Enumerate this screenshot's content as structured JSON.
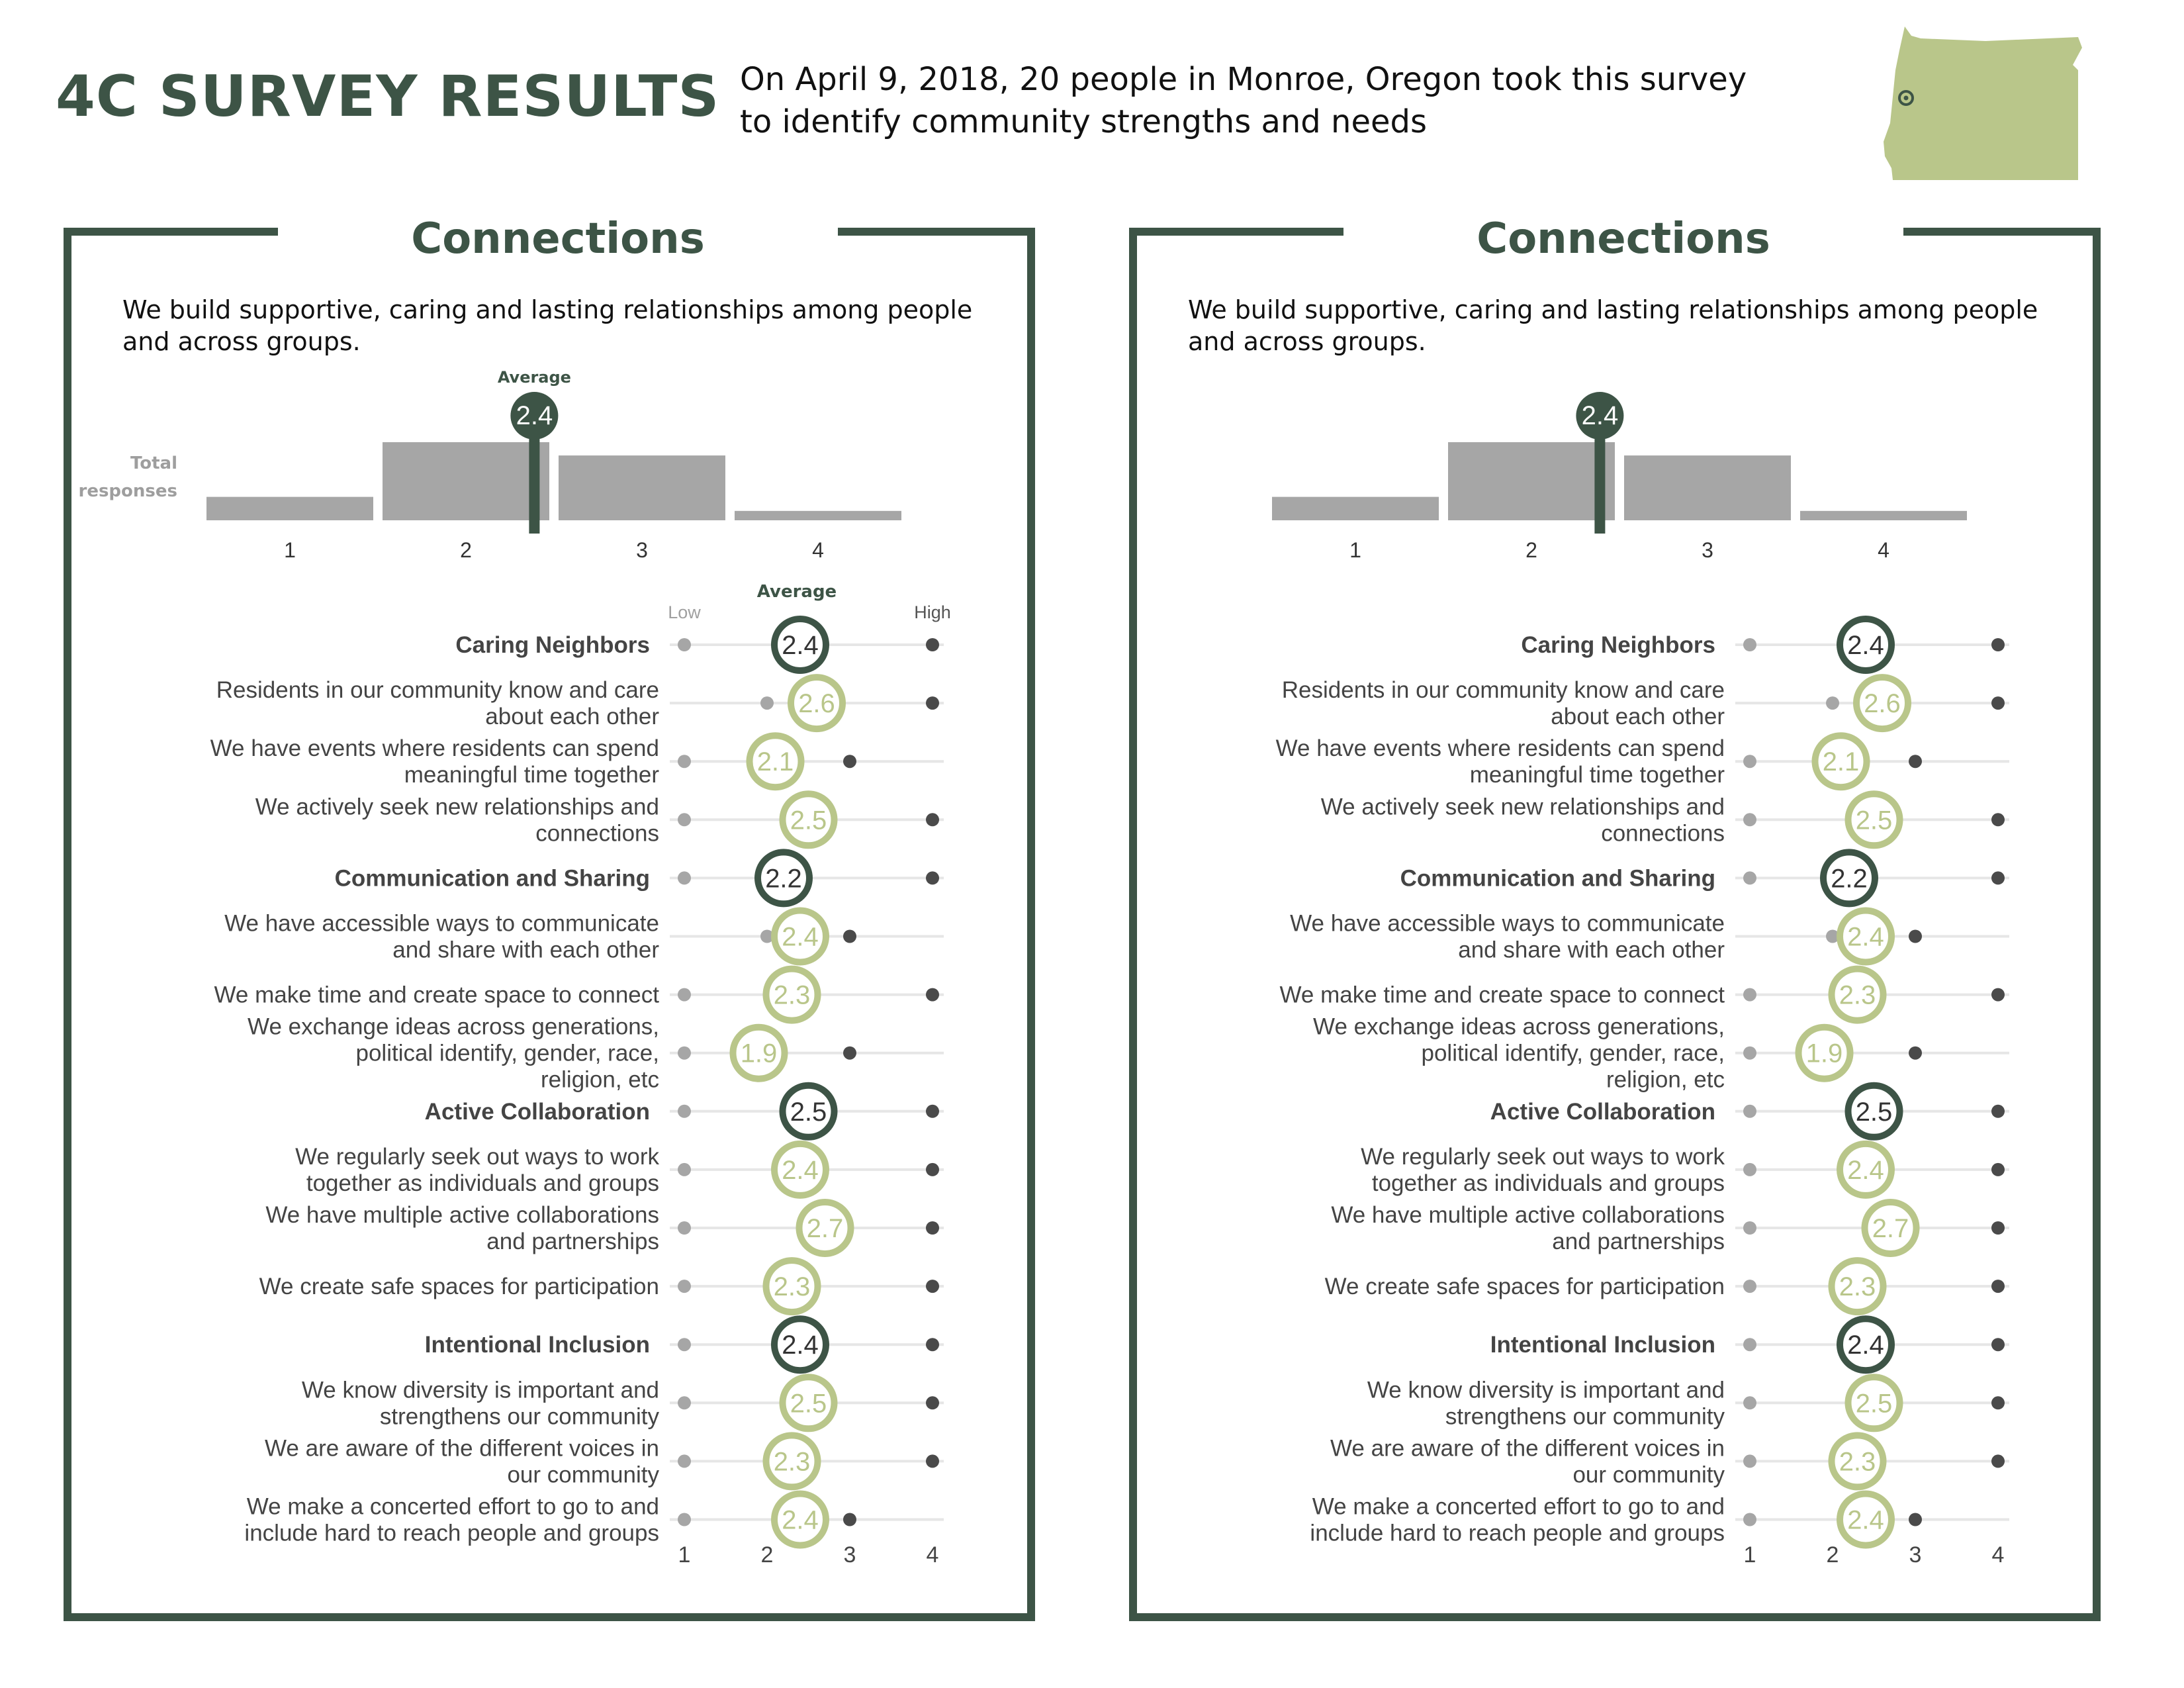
{
  "header": {
    "title": "4C SURVEY RESULTS",
    "intro_line1": "On April 9, 2018, 20 people in Monroe, Oregon took this survey",
    "intro_line2": "to identify community strengths and needs"
  },
  "colors": {
    "dark_green": "#3d5446",
    "light_green": "#b9c68a",
    "bar_gray": "#a6a6a6",
    "low_dot": "#a6a6a6",
    "high_dot": "#4a4a4a",
    "track": "#e6e6e6"
  },
  "icons": {
    "map": "oregon-state-map-icon",
    "marker": "location-marker-icon"
  },
  "panels": [
    {
      "title": "Connections",
      "desc_line1": "We build supportive, caring and lasting relationships among people",
      "desc_line2": "and across groups.",
      "average_caption": "Average",
      "total_caption_line1": "Total",
      "total_caption_line2": "responses",
      "dot_average_caption": "Average",
      "low_caption": "Low",
      "high_caption": "High"
    },
    {
      "title": "Connections",
      "desc_line1": "We build supportive, caring and lasting relationships among people",
      "desc_line2": "and across groups.",
      "average_caption": "",
      "total_caption_line1": "",
      "total_caption_line2": "",
      "dot_average_caption": "",
      "low_caption": "",
      "high_caption": ""
    }
  ],
  "chart_data": [
    {
      "type": "bar",
      "title": "Connections",
      "ylabel": "Total responses",
      "categories": [
        "1",
        "2",
        "3",
        "4"
      ],
      "values": [
        0.3,
        1.0,
        0.83,
        0.12
      ],
      "average": 2.4,
      "average_label": "2.4"
    },
    {
      "type": "scatter",
      "title": "Connections",
      "x_ticks": [
        "1",
        "2",
        "3",
        "4"
      ],
      "xlim": [
        1,
        4
      ],
      "rows": [
        {
          "label": [
            "Caring Neighbors"
          ],
          "category": true,
          "avg": 2.4,
          "avg_label": "2.4",
          "low": 1,
          "high": 4
        },
        {
          "label": [
            "Residents in our community know and care",
            "about each other"
          ],
          "category": false,
          "avg": 2.6,
          "avg_label": "2.6",
          "low": 2,
          "high": 4
        },
        {
          "label": [
            "We have events where residents can spend",
            "meaningful time together"
          ],
          "category": false,
          "avg": 2.1,
          "avg_label": "2.1",
          "low": 1,
          "high": 3
        },
        {
          "label": [
            "We actively seek new relationships and",
            "connections"
          ],
          "category": false,
          "avg": 2.5,
          "avg_label": "2.5",
          "low": 1,
          "high": 4
        },
        {
          "label": [
            "Communication and Sharing"
          ],
          "category": true,
          "avg": 2.2,
          "avg_label": "2.2",
          "low": 1,
          "high": 4
        },
        {
          "label": [
            "We have accessible ways to communicate",
            "and share with each other"
          ],
          "category": false,
          "avg": 2.4,
          "avg_label": "2.4",
          "low": 2,
          "high": 3
        },
        {
          "label": [
            "We make time and create space to connect"
          ],
          "category": false,
          "avg": 2.3,
          "avg_label": "2.3",
          "low": 1,
          "high": 4
        },
        {
          "label": [
            "We exchange ideas across generations,",
            "political identify, gender, race,",
            "religion, etc"
          ],
          "category": false,
          "avg": 1.9,
          "avg_label": "1.9",
          "low": 1,
          "high": 3
        },
        {
          "label": [
            "Active Collaboration"
          ],
          "category": true,
          "avg": 2.5,
          "avg_label": "2.5",
          "low": 1,
          "high": 4
        },
        {
          "label": [
            "We regularly seek out ways to work",
            "together as individuals and groups"
          ],
          "category": false,
          "avg": 2.4,
          "avg_label": "2.4",
          "low": 1,
          "high": 4
        },
        {
          "label": [
            "We have multiple active collaborations",
            "and partnerships"
          ],
          "category": false,
          "avg": 2.7,
          "avg_label": "2.7",
          "low": 1,
          "high": 4
        },
        {
          "label": [
            "We create safe spaces for participation"
          ],
          "category": false,
          "avg": 2.3,
          "avg_label": "2.3",
          "low": 1,
          "high": 4
        },
        {
          "label": [
            "Intentional Inclusion"
          ],
          "category": true,
          "avg": 2.4,
          "avg_label": "2.4",
          "low": 1,
          "high": 4
        },
        {
          "label": [
            "We know diversity is important and",
            "strengthens our community"
          ],
          "category": false,
          "avg": 2.5,
          "avg_label": "2.5",
          "low": 1,
          "high": 4
        },
        {
          "label": [
            "We are aware of the different voices in",
            "our community"
          ],
          "category": false,
          "avg": 2.3,
          "avg_label": "2.3",
          "low": 1,
          "high": 4
        },
        {
          "label": [
            "We make a concerted effort to go to and",
            "include hard to reach people and groups"
          ],
          "category": false,
          "avg": 2.4,
          "avg_label": "2.4",
          "low": 1,
          "high": 3
        }
      ]
    }
  ]
}
